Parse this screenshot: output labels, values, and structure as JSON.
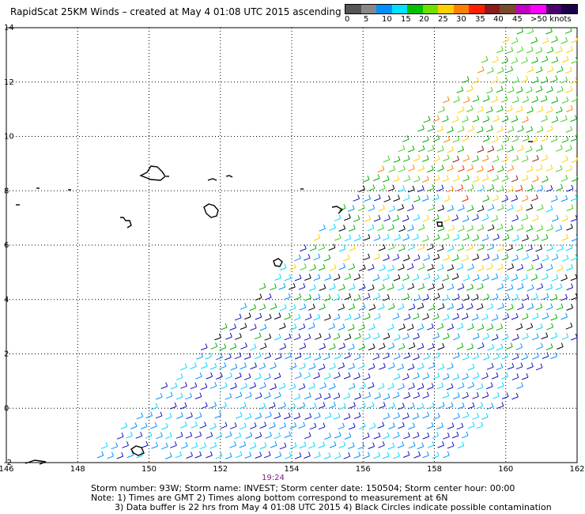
{
  "title": "RapidScat 25KM Winds – created at May  4 01:08 UTC 2015 ascending",
  "legend": {
    "labels": [
      "0",
      "5",
      "10",
      "15",
      "20",
      "25",
      "30",
      "35",
      "40",
      "45",
      ">50 knots"
    ],
    "colors": [
      "#555555",
      "#888888",
      "#0090ff",
      "#00e0ff",
      "#00c000",
      "#70e000",
      "#ffd000",
      "#ff8000",
      "#ff2000",
      "#8b1a1a",
      "#7a4a2a",
      "#c000c0",
      "#ff00ff",
      "#4b0070",
      "#1a004a"
    ]
  },
  "map": {
    "lon_range": [
      146,
      162
    ],
    "lat_range": [
      -2,
      14
    ],
    "x_ticks": [
      "146",
      "148",
      "150",
      "152",
      "154",
      "156",
      "158",
      "160",
      "162"
    ],
    "y_ticks": [
      "-2",
      "0",
      "2",
      "4",
      "6",
      "8",
      "10",
      "12",
      "14"
    ]
  },
  "time_label": "19:24",
  "footer": {
    "line1": "Storm number: 93W;  Storm name: INVEST;  Storm center date: 150504;  Storm center hour: 00:00",
    "line2": "Note: 1) Times are GMT  2) Times along bottom correspond to measurement at 6N",
    "line3": "3) Data buffer is 22 hrs from May  4 01:08 UTC 2015   4) Black Circles indicate possible contamination"
  }
}
